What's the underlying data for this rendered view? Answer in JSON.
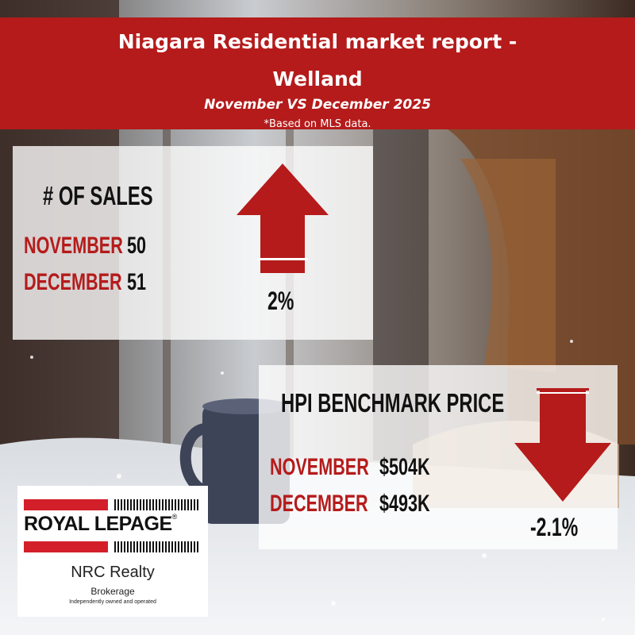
{
  "header": {
    "title_line1": "Niagara Residential market report -",
    "title_line2": "Welland",
    "subtitle": "November VS December 2025",
    "note": "*Based on MLS data."
  },
  "sales": {
    "heading": "# OF SALES",
    "rows": [
      {
        "label": "NOVEMBER",
        "value": "50"
      },
      {
        "label": "DECEMBER",
        "value": "51"
      }
    ],
    "change": "2%",
    "direction": "up"
  },
  "hpi": {
    "heading": "HPI BENCHMARK PRICE",
    "rows": [
      {
        "label": "NOVEMBER",
        "value": "$504K"
      },
      {
        "label": "DECEMBER",
        "value": "$493K"
      }
    ],
    "change": "-2.1%",
    "direction": "down"
  },
  "logo": {
    "brand": "ROYAL LEPAGE",
    "registered": "®",
    "office": "NRC Realty",
    "type": "Brokerage",
    "tagline": "Independently owned and operated"
  },
  "colors": {
    "accent": "#b51b1b",
    "text": "#111111",
    "panel": "#ffffff"
  },
  "icons": [
    "arrow-up-icon",
    "arrow-down-icon"
  ]
}
